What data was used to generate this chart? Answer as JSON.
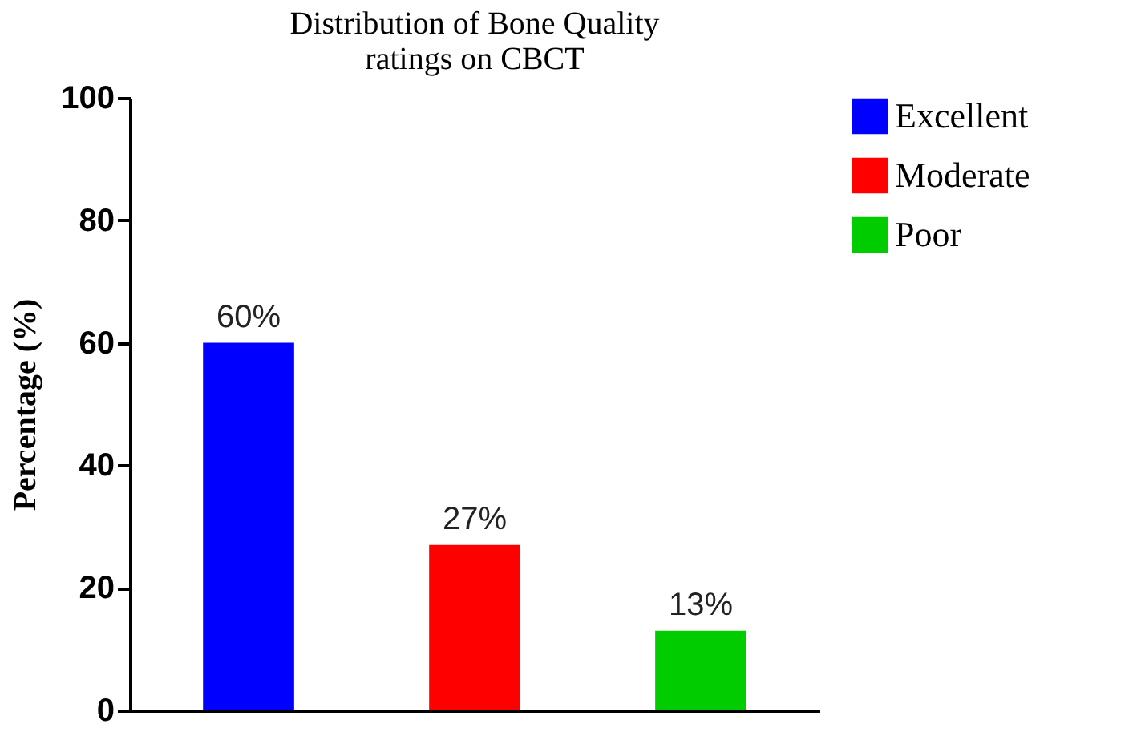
{
  "chart_data": {
    "type": "bar",
    "title": "Distribution of Bone Quality\nratings on CBCT",
    "ylabel": "Percentage (%)",
    "categories": [
      null,
      null,
      null
    ],
    "series": [
      {
        "name": "Excellent",
        "color": "#0000ff",
        "values": [
          60,
          null,
          null
        ],
        "value_labels": [
          "60%",
          null,
          null
        ]
      },
      {
        "name": "Moderate",
        "color": "#ff0000",
        "values": [
          null,
          27,
          null
        ],
        "value_labels": [
          null,
          "27%",
          null
        ]
      },
      {
        "name": "Poor",
        "color": "#00cc00",
        "values": [
          null,
          null,
          13
        ],
        "value_labels": [
          null,
          null,
          "13%"
        ]
      }
    ],
    "ylim": [
      0,
      100
    ],
    "yticks": [
      0,
      20,
      40,
      60,
      80,
      100
    ],
    "grid": false,
    "legend": "top right",
    "tick_labels": "y"
  }
}
